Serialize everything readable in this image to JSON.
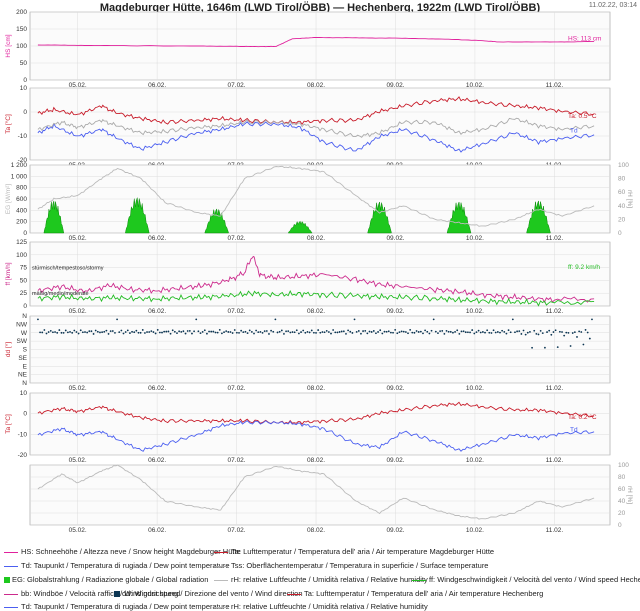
{
  "title": "Magdeburger Hütte, 1646m (LWD Tirol/ÖBB) — Hechenberg, 1922m (LWD Tirol/ÖBB)",
  "timestamp": "11.02.22, 03:14",
  "colors": {
    "snow": "#e0219c",
    "temp": "#c81c2a",
    "dew": "#4b5ff0",
    "surf": "#aaaaaa",
    "glob": "#1ec81e",
    "rh": "#bbbbbb",
    "gust": "#cc2a8c",
    "wind": "#22bb22",
    "dir": "#0c3552"
  },
  "chart_data": {
    "type": "line",
    "x_ticks": [
      "05.02.",
      "06.02.",
      "07.02.",
      "08.02.",
      "09.02.",
      "10.02.",
      "11.02."
    ],
    "panels": [
      {
        "id": "snow",
        "ylabel": "HS [cm]",
        "ylim": [
          0,
          200
        ],
        "yticks": [
          "0",
          "50",
          "100",
          "150",
          "200"
        ],
        "series": [
          {
            "name": "HS",
            "color": "snow",
            "x": [
              0,
              0.5,
              1,
              2,
              2.5,
              2.8,
              3.0,
              3.2,
              3.5,
              4,
              4.5,
              5,
              5.5,
              5.8,
              6.5,
              7
            ],
            "values": [
              103,
              102,
              101,
              100,
              99,
              98,
              99,
              121,
              125,
              124,
              123,
              121,
              117,
              112,
              112,
              113
            ]
          }
        ],
        "end_label": "HS: 113 cm",
        "end_color": "snow"
      },
      {
        "id": "temp1",
        "ylabel": "Ta [°C]",
        "ylim": [
          -25,
          15
        ],
        "yticks": [
          "-20",
          "-10",
          "0",
          "10"
        ],
        "series": [
          {
            "name": "Ta",
            "color": "temp",
            "x": [
              0,
              0.2,
              0.5,
              0.8,
              1.0,
              1.3,
              1.6,
              2.0,
              2.3,
              2.6,
              3.0,
              3.3,
              3.6,
              4.0,
              4.3,
              4.6,
              5.0,
              5.3,
              5.6,
              6.0,
              6.3,
              6.6,
              7.0
            ],
            "values": [
              1,
              3,
              0,
              5,
              1,
              -2,
              -4,
              -3,
              -2,
              -3,
              -4,
              -4,
              -3,
              -3,
              2,
              5,
              8,
              9,
              7,
              5,
              4,
              2,
              0.5
            ]
          },
          {
            "name": "Td",
            "color": "dew",
            "x": [
              0,
              0.2,
              0.5,
              0.8,
              1.0,
              1.3,
              1.6,
              2.0,
              2.3,
              2.6,
              3.0,
              3.3,
              3.6,
              4.0,
              4.3,
              4.6,
              5.0,
              5.3,
              5.6,
              6.0,
              6.3,
              6.6,
              7.0
            ],
            "values": [
              -10,
              -6,
              -12,
              -8,
              -13,
              -19,
              -15,
              -10,
              -8,
              -5,
              -5,
              -7,
              -15,
              -20,
              -12,
              -8,
              -14,
              -20,
              -16,
              -10,
              -15,
              -13,
              -11
            ]
          },
          {
            "name": "Tss",
            "color": "surf",
            "x": [
              0,
              0.3,
              0.5,
              0.8,
              1.0,
              1.3,
              1.6,
              2.0,
              2.3,
              2.6,
              3.0,
              3.3,
              3.6,
              4.0,
              4.3,
              4.6,
              5.0,
              5.3,
              5.6,
              6.0,
              6.3,
              6.6,
              7.0
            ],
            "values": [
              -8,
              -4,
              -7,
              -3,
              -6,
              -10,
              -9,
              -7,
              -6,
              -4,
              -4,
              -5,
              -8,
              -12,
              -10,
              -4,
              -4,
              -10,
              -8,
              -2,
              -6,
              -8,
              -6
            ]
          }
        ],
        "end_label": "Ta: 0.5 °C",
        "end_color": "temp",
        "end_label2": "Td",
        "end_color2": "dew"
      },
      {
        "id": "glob",
        "ylabel": "EG [W/m²]",
        "ylim": [
          0,
          1200
        ],
        "yticks": [
          "0",
          "200",
          "400",
          "600",
          "800",
          "1 000",
          "1 200"
        ],
        "ylabel_right": "rH [%]",
        "yticks_right": [
          "0",
          "20",
          "40",
          "60",
          "80",
          "100"
        ],
        "bars": {
          "name": "EG",
          "color": "glob",
          "days": [
            {
              "center": 0.2,
              "width": 0.25,
              "peak": 600
            },
            {
              "center": 1.25,
              "width": 0.3,
              "peak": 660
            },
            {
              "center": 2.25,
              "width": 0.3,
              "peak": 450
            },
            {
              "center": 3.3,
              "width": 0.3,
              "peak": 220
            },
            {
              "center": 4.3,
              "width": 0.3,
              "peak": 580
            },
            {
              "center": 5.3,
              "width": 0.3,
              "peak": 580
            },
            {
              "center": 6.3,
              "width": 0.3,
              "peak": 600
            }
          ]
        },
        "series": [
          {
            "name": "rH",
            "color": "rh",
            "x": [
              0,
              0.2,
              0.5,
              0.8,
              1.0,
              1.3,
              1.6,
              2.0,
              2.3,
              2.6,
              3.0,
              3.3,
              3.6,
              4.0,
              4.3,
              4.6,
              5.0,
              5.3,
              5.6,
              6.0,
              6.3,
              6.6,
              7.0
            ],
            "values": [
              35,
              50,
              55,
              80,
              95,
              80,
              45,
              30,
              25,
              80,
              98,
              95,
              90,
              55,
              30,
              40,
              20,
              15,
              10,
              20,
              35,
              25,
              40
            ]
          }
        ]
      },
      {
        "id": "wind",
        "ylabel": "ff [km/h]",
        "ylim": [
          0,
          125
        ],
        "yticks": [
          "0",
          "25",
          "50",
          "75",
          "100",
          "125"
        ],
        "annotations": [
          "stürmisch/tempestoso/stormy",
          "mäßig/medio/moderate"
        ],
        "series": [
          {
            "name": "bb",
            "color": "gust",
            "x": [
              0,
              0.3,
              0.6,
              0.9,
              1.2,
              1.5,
              1.8,
              2.1,
              2.4,
              2.6,
              2.7,
              2.8,
              3.0,
              3.3,
              3.6,
              4.0,
              4.3,
              4.6,
              5.0,
              5.3,
              5.6,
              5.9,
              6.2,
              6.5,
              7.0
            ],
            "values": [
              30,
              38,
              28,
              40,
              32,
              30,
              35,
              40,
              50,
              65,
              98,
              60,
              55,
              58,
              62,
              52,
              42,
              38,
              32,
              28,
              22,
              18,
              15,
              12,
              14
            ]
          },
          {
            "name": "ff",
            "color": "wind",
            "x": [
              0,
              0.3,
              0.6,
              0.9,
              1.2,
              1.5,
              1.8,
              2.1,
              2.4,
              2.7,
              3.0,
              3.3,
              3.6,
              4.0,
              4.3,
              4.6,
              5.0,
              5.3,
              5.6,
              5.9,
              6.2,
              6.5,
              7.0
            ],
            "values": [
              15,
              18,
              14,
              16,
              15,
              14,
              16,
              17,
              20,
              25,
              22,
              24,
              22,
              20,
              18,
              17,
              15,
              12,
              10,
              8,
              7,
              6,
              9
            ]
          }
        ],
        "end_label": "ff: 9.2 km/h",
        "end_color": "wind"
      },
      {
        "id": "dir",
        "ylabel": "dd [°]",
        "ylim": [
          0,
          8
        ],
        "yticks": [
          "N",
          "NE",
          "E",
          "SE",
          "S",
          "SW",
          "W",
          "NW",
          "N"
        ],
        "scatter": {
          "name": "dd",
          "color": "dir",
          "base": 6.1,
          "scatter_amp": 0.25
        }
      },
      {
        "id": "temp2",
        "ylabel": "Ta [°C]",
        "ylim": [
          -25,
          15
        ],
        "yticks": [
          "-20",
          "-10",
          "0",
          "10"
        ],
        "series": [
          {
            "name": "Ta",
            "color": "temp",
            "x": [
              0,
              0.3,
              0.5,
              0.8,
              1.0,
              1.3,
              1.6,
              2.0,
              2.3,
              2.6,
              3.0,
              3.3,
              3.6,
              4.0,
              4.3,
              4.6,
              5.0,
              5.3,
              5.6,
              6.0,
              6.3,
              6.6,
              7.0
            ],
            "values": [
              2,
              5,
              3,
              6,
              3,
              -1,
              -3,
              -3,
              -3,
              -3,
              -4,
              -4,
              -3,
              -2,
              2,
              4,
              7,
              8,
              6,
              4,
              4,
              2,
              0.2
            ]
          },
          {
            "name": "Td",
            "color": "dew",
            "x": [
              0,
              0.3,
              0.5,
              0.8,
              1.0,
              1.3,
              1.6,
              2.0,
              2.3,
              2.6,
              3.0,
              3.3,
              3.6,
              4.0,
              4.3,
              4.6,
              5.0,
              5.3,
              5.6,
              6.0,
              6.3,
              6.6,
              7.0
            ],
            "values": [
              -12,
              -8,
              -12,
              -10,
              -15,
              -22,
              -18,
              -12,
              -6,
              -4,
              -4,
              -5,
              -8,
              -18,
              -20,
              -10,
              -16,
              -22,
              -18,
              -12,
              -14,
              -11,
              -10
            ]
          }
        ],
        "end_label": "Ta: 0.2 °C",
        "end_color": "temp",
        "end_label2": "Td",
        "end_color2": "dew"
      },
      {
        "id": "rh2",
        "ylabel": "",
        "ylim": [
          0,
          100
        ],
        "yticks": [],
        "ylabel_right": "rH [%]",
        "yticks_right": [
          "0",
          "20",
          "40",
          "60",
          "80",
          "100"
        ],
        "series": [
          {
            "name": "rH",
            "color": "rh",
            "x": [
              0,
              0.3,
              0.5,
              0.8,
              1.0,
              1.3,
              1.6,
              2.0,
              2.3,
              2.6,
              3.0,
              3.3,
              3.6,
              4.0,
              4.3,
              4.6,
              5.0,
              5.3,
              5.6,
              6.0,
              6.3,
              6.6,
              7.0
            ],
            "values": [
              60,
              85,
              70,
              90,
              100,
              75,
              40,
              30,
              25,
              80,
              98,
              90,
              85,
              40,
              20,
              45,
              25,
              15,
              10,
              20,
              40,
              30,
              45
            ]
          }
        ]
      }
    ]
  },
  "legend": [
    {
      "label": "HS: Schneehöhe / Altezza neve / Snow height  Magdeburger Hütte",
      "color": "snow",
      "kind": "line"
    },
    {
      "label": "Ta: Lufttemperatur / Temperatura dell' aria / Air temperature  Magdeburger Hütte",
      "color": "temp",
      "kind": "line"
    },
    {
      "label": "Td: Taupunkt / Temperatura di rugiada / Dew point temperature",
      "color": "dew",
      "kind": "line"
    },
    {
      "label": "Tss: Oberflächentemperatur / Temperatura in superficie / Surface temperature",
      "color": "surf",
      "kind": "line"
    },
    {
      "label": "EG: Globalstrahlung / Radiazione globale / Global radiation",
      "color": "glob",
      "kind": "square"
    },
    {
      "label": "rH: relative Luftfeuchte / Umidità relativa / Relative humidity",
      "color": "rh",
      "kind": "line"
    },
    {
      "label": "ff: Windgeschwindigkeit / Velocità del vento / Wind speed  Hechenberg",
      "color": "wind",
      "kind": "line"
    },
    {
      "label": "bb: Windböe / Velocità raffica / Wind gust speed",
      "color": "gust",
      "kind": "line"
    },
    {
      "label": "dd: Windrichtung / Direzione del vento / Wind direction",
      "color": "dir",
      "kind": "square"
    },
    {
      "label": "Ta: Lufttemperatur / Temperatura dell' aria / Air temperature  Hechenberg",
      "color": "temp",
      "kind": "line"
    },
    {
      "label": "Td: Taupunkt / Temperatura di rugiada / Dew point temperature",
      "color": "dew",
      "kind": "line"
    },
    {
      "label": "rH: relative Luftfeuchte / Umidità relativa / Relative humidity",
      "color": "rh",
      "kind": "line"
    }
  ]
}
